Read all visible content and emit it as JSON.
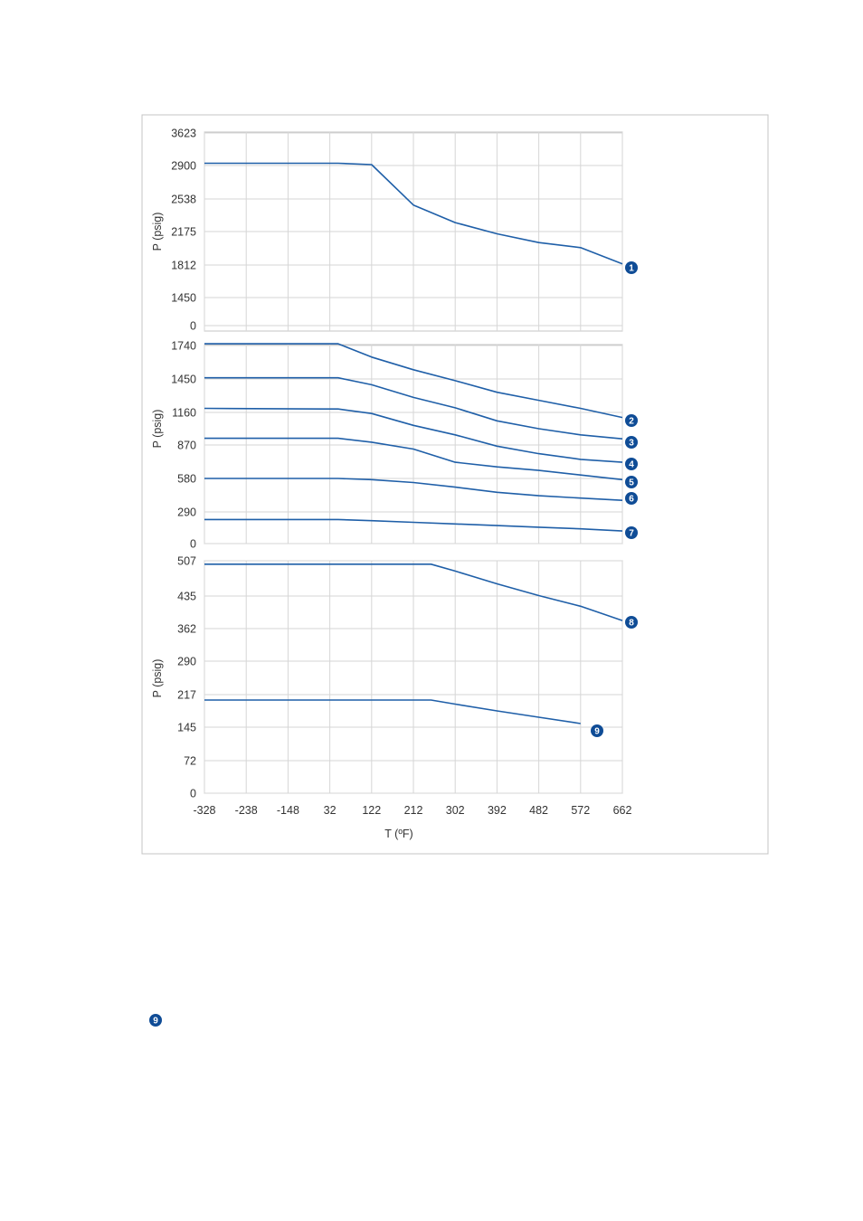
{
  "colors": {
    "line": "#1f5fa8",
    "marker": "#0f4c96",
    "grid": "#d6d6d6",
    "frame": "#c4c4c4",
    "tick_text": "#333333"
  },
  "legend_marker": {
    "label": "9"
  },
  "chart_data": [
    {
      "type": "line",
      "xlabel": "T (ºF)",
      "ylabel": "P (psig)",
      "x_ticks": [
        -328,
        -238,
        -148,
        32,
        122,
        212,
        302,
        392,
        482,
        572,
        662
      ],
      "y_ticks": [
        0,
        1450,
        1812,
        2175,
        2538,
        2900,
        3623
      ],
      "grid": true,
      "series": [
        {
          "name": "1",
          "x": [
            -328,
            0,
            50,
            122,
            212,
            302,
            392,
            482,
            572,
            662
          ],
          "y": [
            2950,
            2950,
            2950,
            2920,
            2470,
            2275,
            2150,
            2055,
            2000,
            1825
          ]
        }
      ]
    },
    {
      "type": "line",
      "xlabel": "T (ºF)",
      "ylabel": "P (psig)",
      "x_ticks": [
        -328,
        -238,
        -148,
        32,
        122,
        212,
        302,
        392,
        482,
        572,
        662
      ],
      "y_ticks": [
        0,
        290,
        580,
        870,
        1160,
        1450,
        1740
      ],
      "grid": true,
      "series": [
        {
          "name": "2",
          "x": [
            -328,
            0,
            50,
            122,
            212,
            302,
            392,
            482,
            572,
            662
          ],
          "y": [
            1755,
            1755,
            1755,
            1640,
            1530,
            1435,
            1335,
            1265,
            1195,
            1115
          ]
        },
        {
          "name": "3",
          "x": [
            -328,
            0,
            50,
            122,
            212,
            302,
            392,
            482,
            572,
            662
          ],
          "y": [
            1460,
            1460,
            1460,
            1400,
            1290,
            1200,
            1085,
            1015,
            960,
            925
          ]
        },
        {
          "name": "4",
          "x": [
            -328,
            0,
            50,
            122,
            212,
            302,
            392,
            482,
            572,
            662
          ],
          "y": [
            1195,
            1190,
            1190,
            1150,
            1045,
            960,
            860,
            795,
            745,
            720
          ]
        },
        {
          "name": "5",
          "x": [
            -328,
            0,
            50,
            122,
            212,
            302,
            392,
            482,
            572,
            662
          ],
          "y": [
            930,
            930,
            930,
            895,
            835,
            720,
            680,
            650,
            610,
            570
          ]
        },
        {
          "name": "6",
          "x": [
            -328,
            0,
            50,
            122,
            212,
            302,
            392,
            482,
            572,
            662
          ],
          "y": [
            580,
            580,
            580,
            570,
            545,
            505,
            460,
            430,
            410,
            390
          ]
        },
        {
          "name": "7",
          "x": [
            -328,
            0,
            50,
            122,
            212,
            302,
            392,
            482,
            572,
            662
          ],
          "y": [
            220,
            220,
            220,
            210,
            195,
            180,
            165,
            150,
            135,
            115
          ]
        }
      ]
    },
    {
      "type": "line",
      "xlabel": "T (ºF)",
      "ylabel": "P (psig)",
      "x_ticks": [
        -328,
        -238,
        -148,
        32,
        122,
        212,
        302,
        392,
        482,
        572,
        662
      ],
      "y_ticks": [
        0,
        72,
        145,
        217,
        290,
        362,
        435,
        507
      ],
      "grid": true,
      "series": [
        {
          "name": "8",
          "x": [
            -328,
            0,
            150,
            212,
            250,
            302,
            392,
            482,
            572,
            662
          ],
          "y": [
            500,
            500,
            500,
            500,
            500,
            486,
            460,
            436,
            412,
            380
          ]
        },
        {
          "name": "9",
          "x": [
            -328,
            0,
            150,
            212,
            250,
            302,
            392,
            482,
            572
          ],
          "y": [
            205,
            205,
            205,
            205,
            205,
            196,
            181,
            167,
            153
          ]
        }
      ]
    }
  ]
}
